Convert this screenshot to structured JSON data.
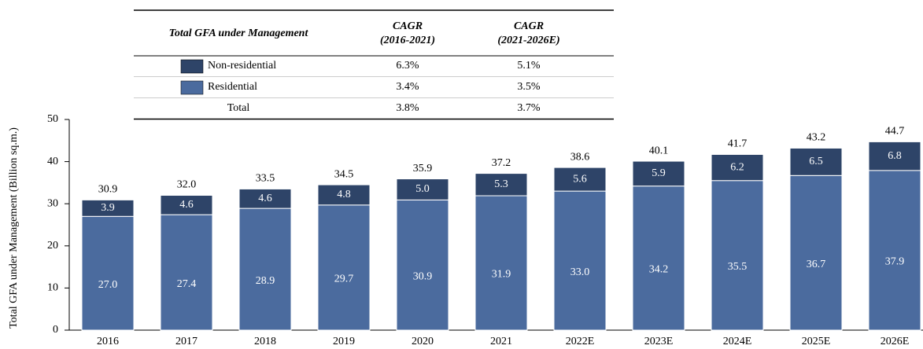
{
  "chart_data": {
    "type": "stacked_bar",
    "ylabel": "Total GFA under Management (Billion sq.m.)",
    "categories": [
      "2016",
      "2017",
      "2018",
      "2019",
      "2020",
      "2021",
      "2022E",
      "2023E",
      "2024E",
      "2025E",
      "2026E"
    ],
    "series": [
      {
        "name": "Residential",
        "color": "#4b6b9e",
        "values": [
          27.0,
          27.4,
          28.9,
          29.7,
          30.9,
          31.9,
          33.0,
          34.2,
          35.5,
          36.7,
          37.9
        ],
        "value_labels": [
          "27.0",
          "27.4",
          "28.9",
          "29.7",
          "30.9",
          "31.9",
          "33.0",
          "34.2",
          "35.5",
          "36.7",
          "37.9"
        ]
      },
      {
        "name": "Non-residential",
        "color": "#2e4468",
        "values": [
          3.9,
          4.6,
          4.6,
          4.8,
          5.0,
          5.3,
          5.6,
          5.9,
          6.2,
          6.5,
          6.8
        ],
        "value_labels": [
          "3.9",
          "4.6",
          "4.6",
          "4.8",
          "5.0",
          "5.3",
          "5.6",
          "5.9",
          "6.2",
          "6.5",
          "6.8"
        ]
      }
    ],
    "totals": [
      30.9,
      32.0,
      33.5,
      34.5,
      35.9,
      37.2,
      38.6,
      40.1,
      41.7,
      43.2,
      44.7
    ],
    "total_labels": [
      "30.9",
      "32.0",
      "33.5",
      "34.5",
      "35.9",
      "37.2",
      "38.6",
      "40.1",
      "41.7",
      "43.2",
      "44.7"
    ],
    "ylim": [
      0,
      50
    ],
    "yticks": [
      0,
      10,
      20,
      30,
      40,
      50
    ],
    "legend_table": {
      "title": "Total GFA under Management",
      "columns": [
        [
          "CAGR",
          "(2016-2021)"
        ],
        [
          "CAGR",
          "(2021-2026E)"
        ]
      ],
      "rows": [
        {
          "series": 1,
          "cells": [
            "6.3%",
            "5.1%"
          ]
        },
        {
          "series": 0,
          "cells": [
            "3.4%",
            "3.5%"
          ]
        },
        {
          "label": "Total",
          "cells": [
            "3.8%",
            "3.7%"
          ]
        }
      ]
    }
  }
}
